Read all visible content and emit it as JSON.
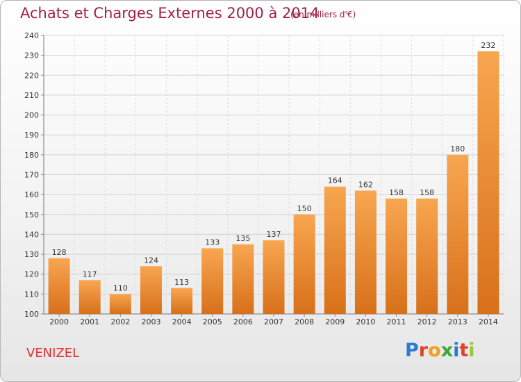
{
  "title": "Achats et Charges Externes 2000 à 2014",
  "subtitle": "(en milliers d'€)",
  "commune": "VENIZEL",
  "brand": {
    "letters": [
      "P",
      "r",
      "o",
      "x",
      "i",
      "t",
      "i"
    ],
    "colors": [
      "#2a7bd6",
      "#e0422a",
      "#f0a020",
      "#3aa83a",
      "#2a7bd6",
      "#e0422a",
      "#9ac43a"
    ]
  },
  "colors": {
    "title": "#a0204a",
    "bar_light": "#f6a24c",
    "bar_dark": "#d97218",
    "commune": "#e03030"
  },
  "chart_data": {
    "type": "bar",
    "categories": [
      "2000",
      "2001",
      "2002",
      "2003",
      "2004",
      "2005",
      "2006",
      "2007",
      "2008",
      "2009",
      "2010",
      "2011",
      "2012",
      "2013",
      "2014"
    ],
    "values": [
      128,
      117,
      110,
      124,
      113,
      133,
      135,
      137,
      150,
      164,
      162,
      158,
      158,
      180,
      232
    ],
    "ylim": [
      100,
      240
    ],
    "yticks": [
      100,
      110,
      120,
      130,
      140,
      150,
      160,
      170,
      180,
      190,
      200,
      210,
      220,
      230,
      240
    ],
    "grid": true
  }
}
